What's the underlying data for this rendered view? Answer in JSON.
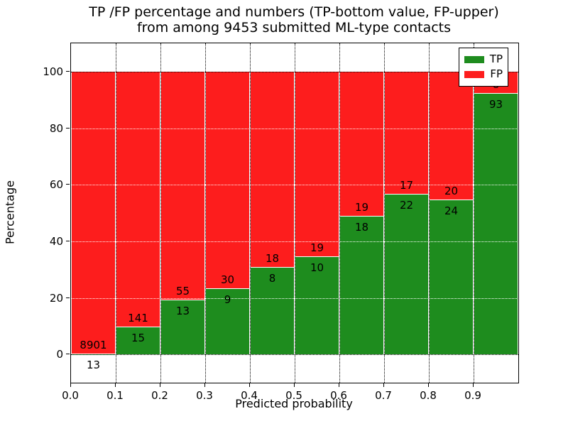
{
  "title": {
    "line1": "TP /FP percentage and numbers (TP-bottom value, FP-upper)",
    "line2": "from among 9453 submitted ML-type contacts"
  },
  "axes": {
    "xlabel": "Predicted probability",
    "ylabel": "Percentage"
  },
  "chart_data": {
    "type": "bar",
    "subtype": "stacked-percentage-histogram",
    "title": "TP /FP percentage and numbers (TP-bottom value, FP-upper) from among 9453 submitted ML-type contacts",
    "xlabel": "Predicted probability",
    "ylabel": "Percentage",
    "total_contacts": 9453,
    "bins": [
      "0.0-0.1",
      "0.1-0.2",
      "0.2-0.3",
      "0.3-0.4",
      "0.4-0.5",
      "0.5-0.6",
      "0.6-0.7",
      "0.7-0.8",
      "0.8-0.9",
      "0.9-1.0"
    ],
    "series": [
      {
        "name": "TP",
        "color": "#1e8c1e",
        "counts": [
          13,
          15,
          13,
          9,
          8,
          10,
          18,
          22,
          24,
          93
        ]
      },
      {
        "name": "FP",
        "color": "#fd1d1d",
        "counts": [
          8901,
          141,
          55,
          30,
          18,
          19,
          19,
          17,
          20,
          8
        ]
      }
    ],
    "tp_percent": [
      0.15,
      9.62,
      19.12,
      23.08,
      30.77,
      34.48,
      48.65,
      56.41,
      54.55,
      92.08
    ],
    "note": "bars show TP/(TP+FP) percentage per bin, stacked to 100; numeric labels show raw counts (TP below boundary, FP above)",
    "xlim": [
      0.0,
      1.0
    ],
    "ylim": [
      -10,
      110
    ],
    "yticks": [
      0,
      20,
      40,
      60,
      80,
      100
    ],
    "xticks": [
      "0.0",
      "0.1",
      "0.2",
      "0.3",
      "0.4",
      "0.5",
      "0.6",
      "0.7",
      "0.8",
      "0.9"
    ],
    "xtick_values": [
      0.0,
      0.1,
      0.2,
      0.3,
      0.4,
      0.5,
      0.6,
      0.7,
      0.8,
      0.9
    ],
    "grid": "dotted",
    "legend_position": "upper-right",
    "legend": [
      "TP",
      "FP"
    ]
  }
}
